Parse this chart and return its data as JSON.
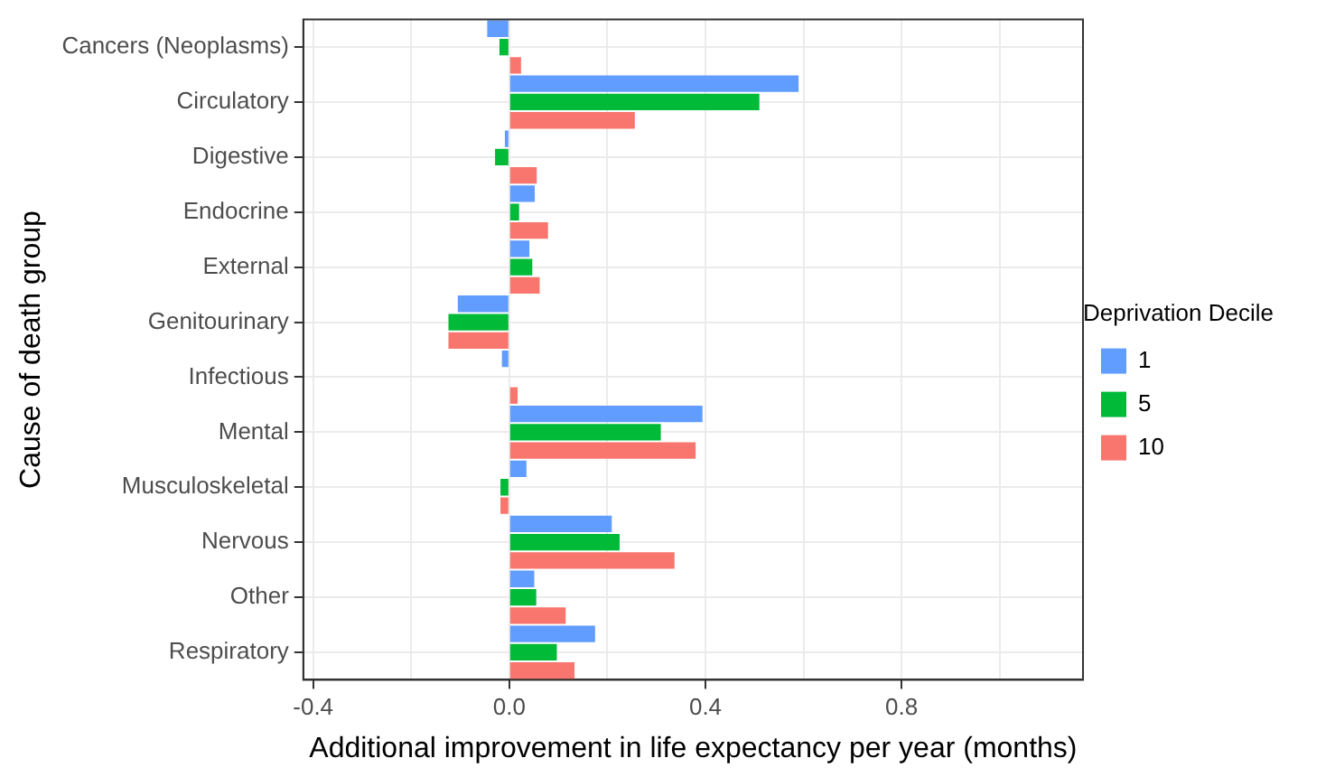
{
  "chart_data": {
    "type": "bar",
    "orientation": "horizontal",
    "xlabel": "Additional improvement in life expectancy per year (months)",
    "ylabel": "Cause of death group",
    "legend_title": "Deprivation Decile",
    "legend": "right",
    "grid": true,
    "categories": [
      "Cancers (Neoplasms)",
      "Circulatory",
      "Digestive",
      "Endocrine",
      "External",
      "Genitourinary",
      "Infectious",
      "Mental",
      "Musculoskeletal",
      "Nervous",
      "Other",
      "Respiratory"
    ],
    "xlim": [
      -0.42,
      1.17
    ],
    "xticks": [
      -0.4,
      {
        "value": -0.2,
        "label": null
      },
      {
        "value": 0,
        "label": "0.0"
      },
      {
        "value": 0.2,
        "label": null
      },
      0.4,
      {
        "value": 0.6,
        "label": null
      },
      0.8,
      {
        "value": 1.0,
        "label": null
      }
    ],
    "series": [
      {
        "name": "1",
        "color": "#619cff",
        "values": [
          -0.045,
          0.59,
          -0.009,
          0.052,
          0.041,
          -0.105,
          -0.015,
          0.394,
          0.035,
          0.209,
          0.051,
          0.175
        ]
      },
      {
        "name": "5",
        "color": "#00ba38",
        "values": [
          -0.02,
          0.51,
          -0.029,
          0.02,
          0.047,
          -0.124,
          null,
          0.309,
          -0.018,
          0.225,
          0.055,
          0.097
        ]
      },
      {
        "name": "10",
        "color": "#f8766d",
        "values": [
          0.024,
          0.256,
          0.056,
          0.079,
          0.062,
          -0.124,
          0.017,
          0.38,
          -0.018,
          0.337,
          0.115,
          0.133
        ]
      }
    ]
  }
}
